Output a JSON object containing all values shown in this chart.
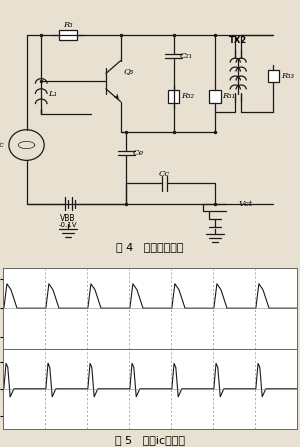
{
  "title_fig4": "图 4   功率放大电路",
  "title_fig5": "图 5   电流ic波形图",
  "bg_color": "#e8e0d0",
  "waveform_bg": "#ffffff",
  "plot1_ylim": [
    -280,
    280
  ],
  "plot2_ylim": [
    -150,
    150
  ],
  "line_color": "#1a1a1a",
  "grid_color": "#999999",
  "font_size_title": 8,
  "font_size_label": 6.5,
  "lw": 0.9
}
